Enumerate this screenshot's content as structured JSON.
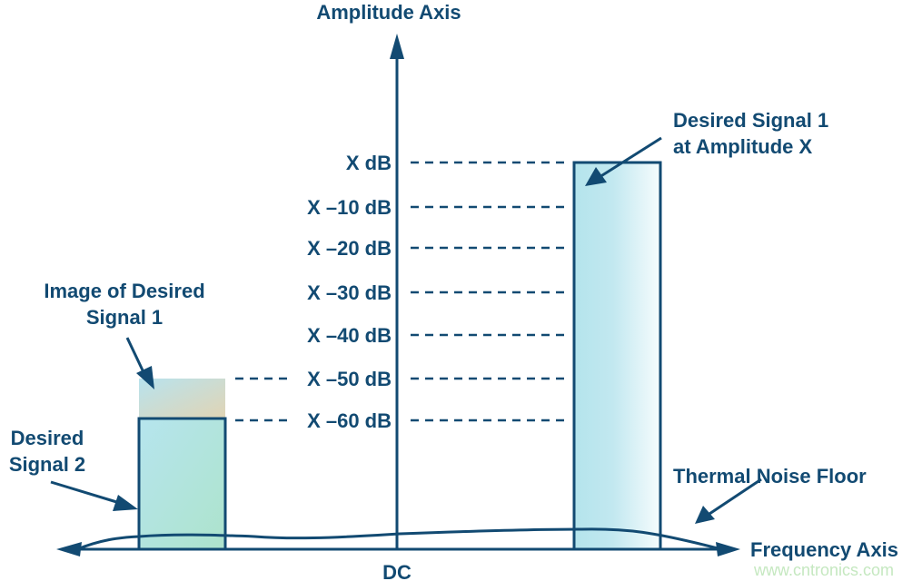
{
  "axes": {
    "vertical_label": "Amplitude Axis",
    "horizontal_label": "Frequency Axis",
    "origin_label": "DC"
  },
  "levels": [
    "X dB",
    "X –10 dB",
    "X –20 dB",
    "X –30 dB",
    "X –40 dB",
    "X –50 dB",
    "X –60 dB"
  ],
  "annotations": {
    "signal1_line1": "Desired Signal 1",
    "signal1_line2": "at Amplitude X",
    "image_line1": "Image of Desired",
    "image_line2": "Signal 1",
    "signal2_line1": "Desired",
    "signal2_line2": "Signal 2",
    "noise_floor": "Thermal Noise Floor"
  },
  "watermark": "www.cntronics.com",
  "colors": {
    "ink": "#124a72",
    "bar_fill": "#b4e4ec",
    "watermark": "#c5e8c0"
  }
}
